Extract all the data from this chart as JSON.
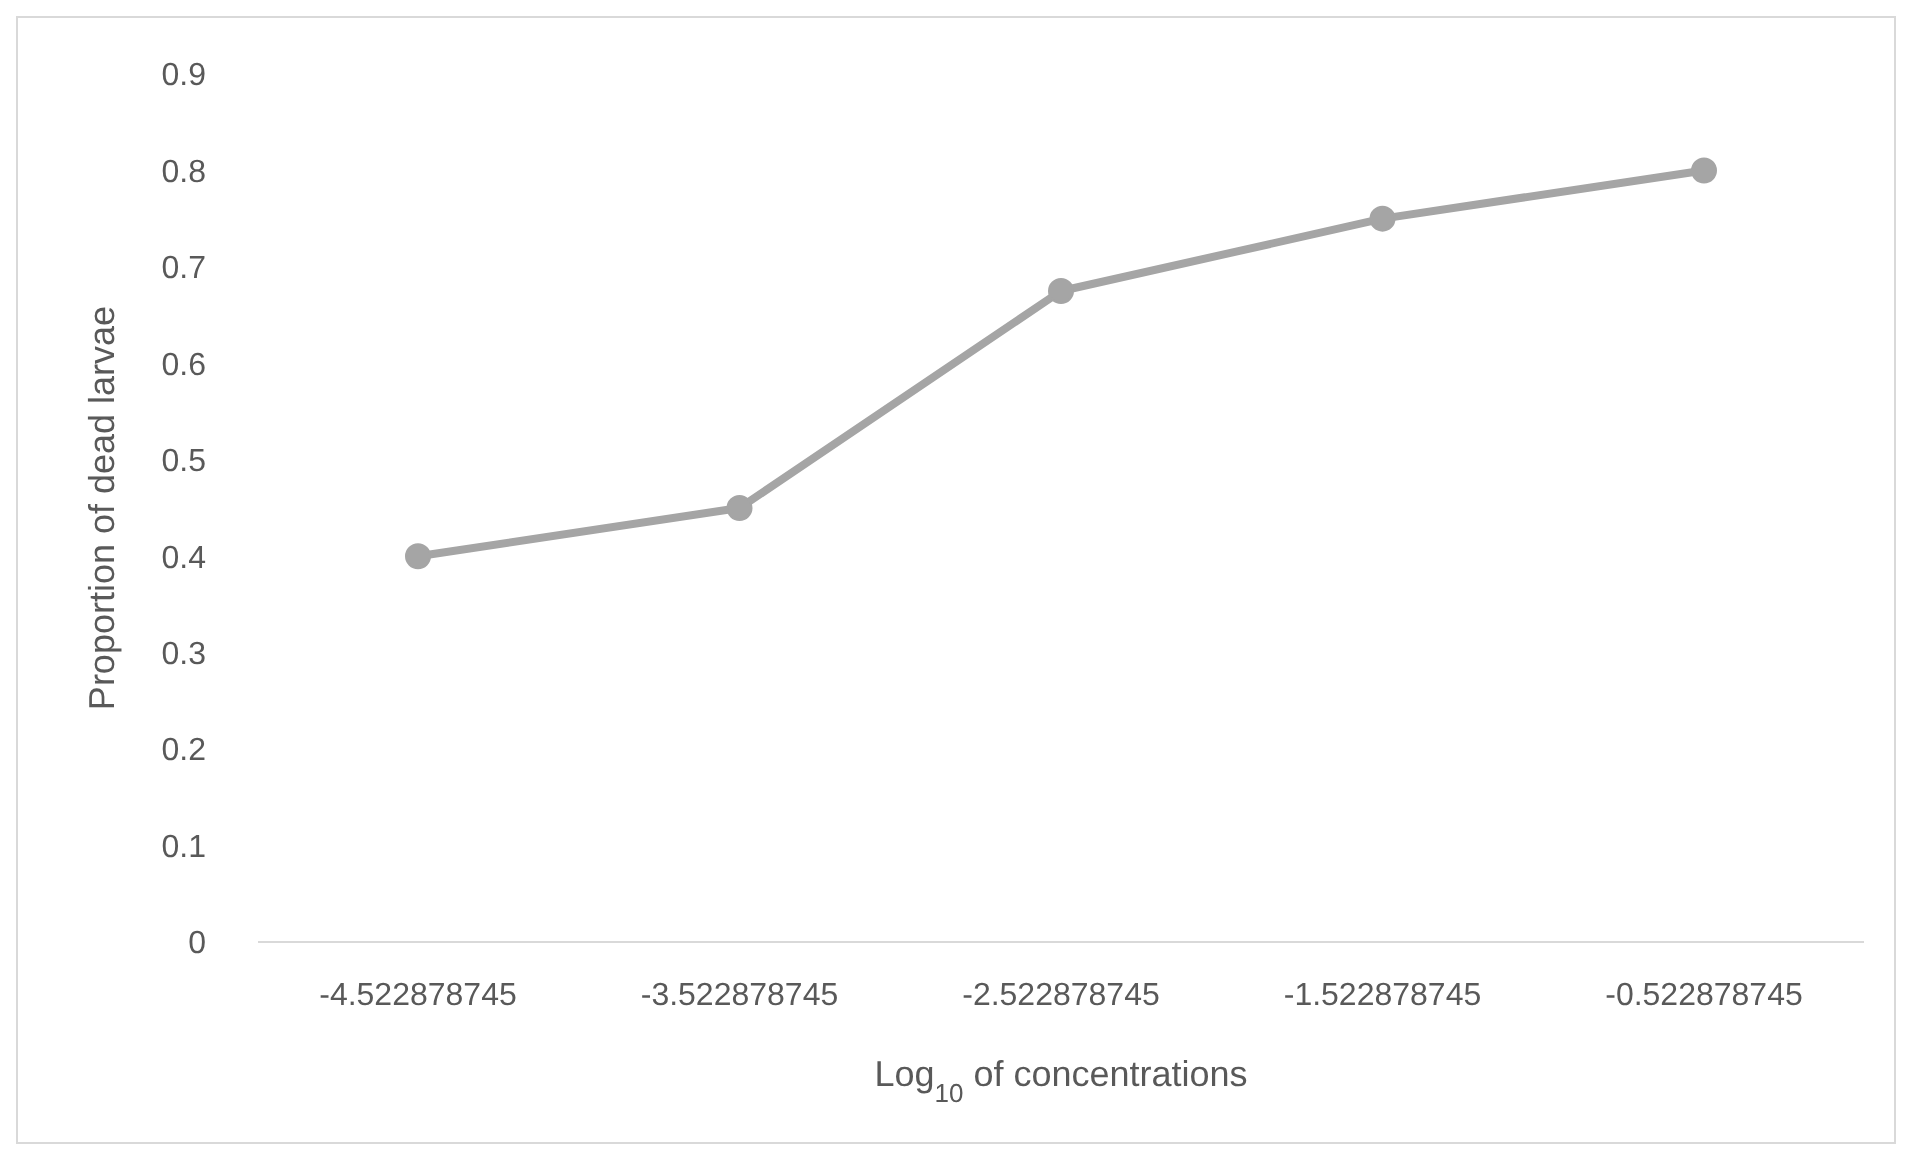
{
  "chart_data": {
    "type": "line",
    "xlabel": "Log$_{10}$ of concentrations",
    "ylabel": "Proportion of dead larvae",
    "categories": [
      "-4.522878745",
      "-3.522878745",
      "-2.522878745",
      "-1.522878745",
      "-0.522878745"
    ],
    "series": [
      {
        "color": "#a5a5a5",
        "values": [
          0.4,
          0.45,
          0.675,
          0.75,
          0.8
        ]
      }
    ],
    "ylim": [
      0,
      0.9
    ],
    "yticks": [
      0,
      0.1,
      0.2,
      0.3,
      0.4,
      0.5,
      0.6,
      0.7,
      0.8,
      0.9
    ],
    "grid": false,
    "legend": false,
    "marker": "circle",
    "line_style": "solid"
  }
}
